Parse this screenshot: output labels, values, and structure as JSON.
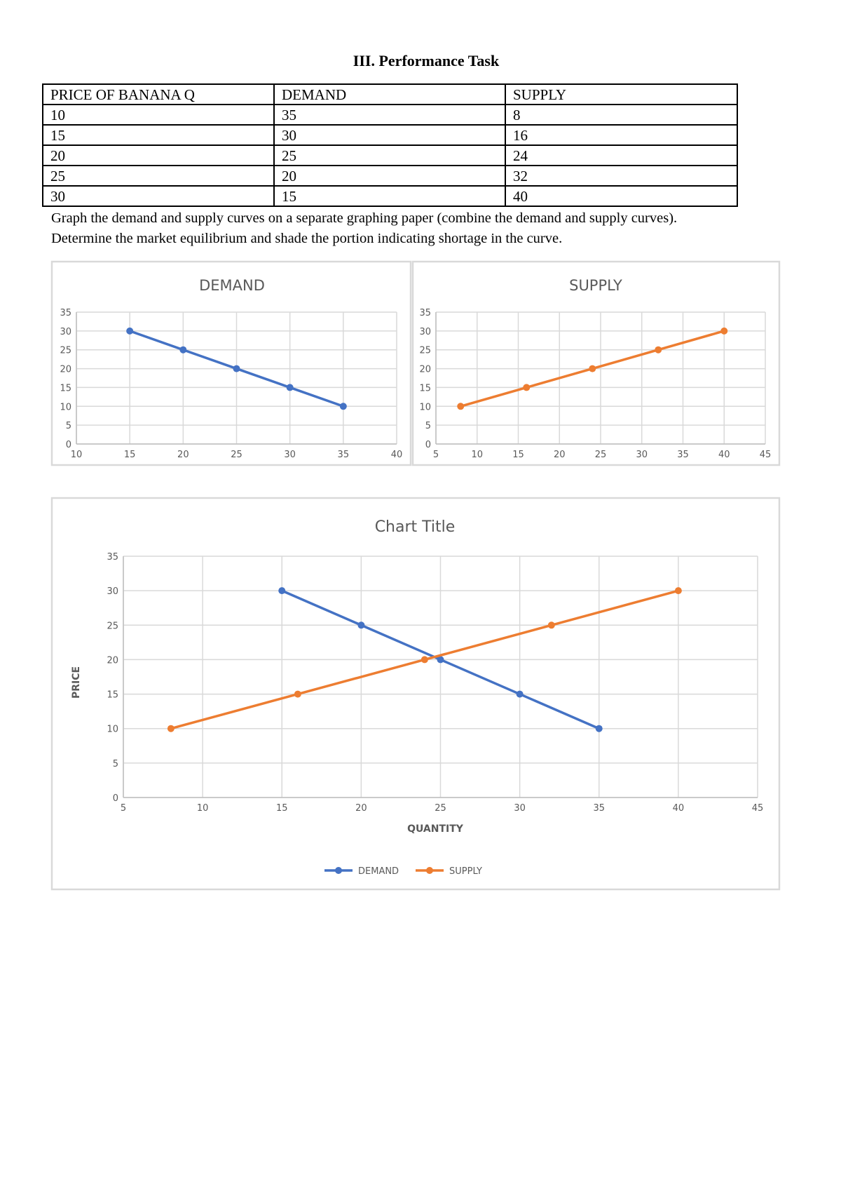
{
  "title": "III. Performance Task",
  "table": {
    "header": [
      "PRICE OF BANANA Q",
      "DEMAND",
      "SUPPLY"
    ],
    "rows": [
      [
        10,
        35,
        8
      ],
      [
        15,
        30,
        16
      ],
      [
        20,
        25,
        24
      ],
      [
        25,
        20,
        32
      ],
      [
        30,
        15,
        40
      ]
    ]
  },
  "instructions": [
    "Graph the demand and supply curves on a separate graphing paper (combine the demand and supply curves).",
    "Determine the market equilibrium and shade the portion indicating shortage in the curve."
  ],
  "chart_data": [
    {
      "type": "line",
      "title": "DEMAND",
      "series": [
        {
          "color": "#4472c4",
          "x": [
            15,
            20,
            25,
            30,
            35
          ],
          "values": [
            30,
            25,
            20,
            15,
            10
          ]
        }
      ],
      "xlim": [
        10,
        40
      ],
      "xticks": [
        10,
        15,
        20,
        25,
        30,
        35,
        40
      ],
      "ylim": [
        0,
        35
      ],
      "yticks": [
        0,
        5,
        10,
        15,
        20,
        25,
        30,
        35
      ],
      "grid": true
    },
    {
      "type": "line",
      "title": "SUPPLY",
      "series": [
        {
          "color": "#ed7d31",
          "x": [
            8,
            16,
            24,
            32,
            40
          ],
          "values": [
            10,
            15,
            20,
            25,
            30
          ]
        }
      ],
      "xlim": [
        5,
        45
      ],
      "xticks": [
        5,
        10,
        15,
        20,
        25,
        30,
        35,
        40,
        45
      ],
      "ylim": [
        0,
        35
      ],
      "yticks": [
        0,
        5,
        10,
        15,
        20,
        25,
        30,
        35
      ],
      "grid": true
    },
    {
      "type": "line",
      "title": "Chart Title",
      "xlabel": "QUANTITY",
      "ylabel": "PRICE",
      "series": [
        {
          "name": "DEMAND",
          "color": "#4472c4",
          "x": [
            15,
            20,
            25,
            30,
            35
          ],
          "values": [
            30,
            25,
            20,
            15,
            10
          ]
        },
        {
          "name": "SUPPLY",
          "color": "#ed7d31",
          "x": [
            8,
            16,
            24,
            32,
            40
          ],
          "values": [
            10,
            15,
            20,
            25,
            30
          ]
        }
      ],
      "xlim": [
        5,
        45
      ],
      "xticks": [
        5,
        10,
        15,
        20,
        25,
        30,
        35,
        40,
        45
      ],
      "ylim": [
        0,
        35
      ],
      "yticks": [
        0,
        5,
        10,
        15,
        20,
        25,
        30,
        35
      ],
      "grid": true,
      "legend": "bottom"
    }
  ]
}
